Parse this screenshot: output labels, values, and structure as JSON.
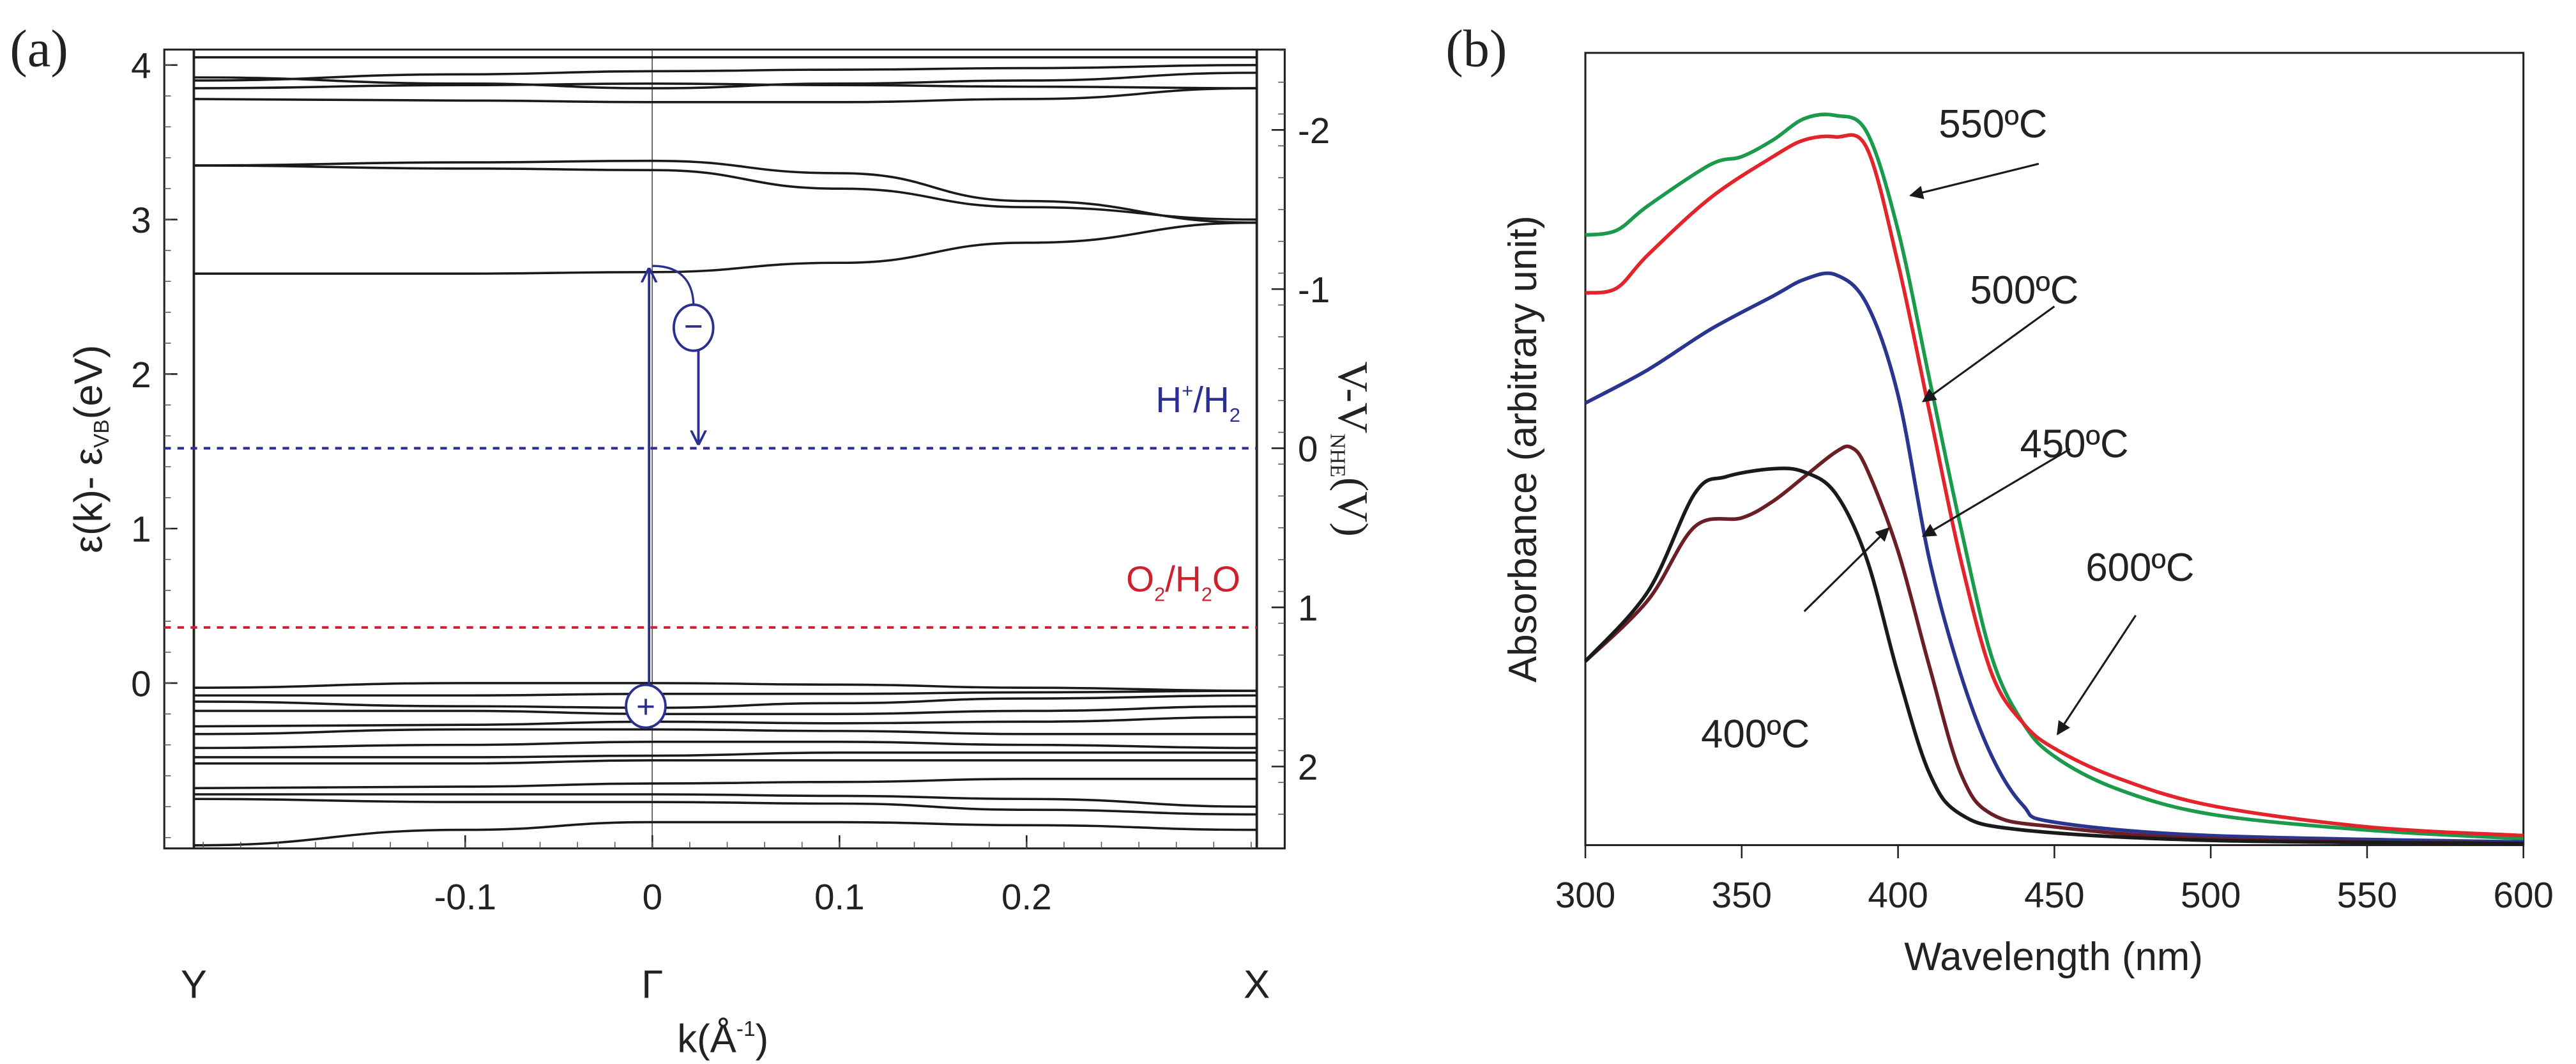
{
  "chart_data": [
    {
      "type": "line",
      "panel_label": "(a)",
      "title": "",
      "xlabel": {
        "main": "k(Å",
        "sup": "-1",
        "end": ")"
      },
      "ylabel": {
        "main": "ε(k)- ε",
        "sub": "VB",
        "end": "(eV)"
      },
      "ylabel_right": {
        "main": "V-V",
        "sub": "NHE",
        "end": "(V)"
      },
      "xlim": [
        -0.245,
        0.323
      ],
      "ylim": [
        -1.07,
        4.1
      ],
      "x_ticks": [
        -0.1,
        0,
        0.1,
        0.2
      ],
      "x_tick_labels": [
        "-0.1",
        "0",
        "0.1",
        "0.2"
      ],
      "y_ticks": [
        0,
        1,
        2,
        3,
        4
      ],
      "y_tick_labels": [
        "0",
        "1",
        "2",
        "3",
        "4"
      ],
      "right_axis": {
        "offset_eV": 1.52,
        "scale": 1.03,
        "ticks": [
          -2,
          -1,
          0,
          1,
          2
        ],
        "tick_labels": [
          "-2",
          "-1",
          "0",
          "1",
          "2"
        ]
      },
      "high_symmetry_points": [
        {
          "label": "Y",
          "k": -0.245
        },
        {
          "label": "Γ",
          "k": 0
        },
        {
          "label": "X",
          "k": 0.323
        }
      ],
      "band_k": [
        -0.245,
        -0.1,
        0,
        0.1,
        0.2,
        0.323
      ],
      "bands": [
        [
          2.65,
          2.65,
          2.66,
          2.72,
          2.85,
          2.98
        ],
        [
          3.35,
          3.33,
          3.32,
          3.2,
          3.08,
          3.0
        ],
        [
          3.35,
          3.37,
          3.38,
          3.3,
          3.12,
          2.98
        ],
        [
          3.78,
          3.77,
          3.76,
          3.76,
          3.78,
          3.85
        ],
        [
          3.85,
          3.87,
          3.88,
          3.87,
          3.86,
          3.85
        ],
        [
          3.92,
          3.88,
          3.85,
          3.88,
          3.9,
          3.95
        ],
        [
          3.9,
          3.94,
          3.96,
          3.97,
          3.98,
          4.0
        ],
        [
          4.05,
          4.05,
          4.05,
          4.05,
          4.05,
          4.05
        ],
        [
          -0.03,
          0.0,
          0.0,
          -0.01,
          -0.03,
          -0.05
        ],
        [
          -0.08,
          -0.08,
          -0.07,
          -0.07,
          -0.06,
          -0.05
        ],
        [
          -0.12,
          -0.15,
          -0.16,
          -0.13,
          -0.1,
          -0.08
        ],
        [
          -0.18,
          -0.18,
          -0.2,
          -0.2,
          -0.18,
          -0.15
        ],
        [
          -0.28,
          -0.27,
          -0.25,
          -0.26,
          -0.25,
          -0.22
        ],
        [
          -0.33,
          -0.3,
          -0.3,
          -0.31,
          -0.33,
          -0.33
        ],
        [
          -0.42,
          -0.4,
          -0.38,
          -0.38,
          -0.4,
          -0.42
        ],
        [
          -0.48,
          -0.48,
          -0.47,
          -0.45,
          -0.45,
          -0.45
        ],
        [
          -0.52,
          -0.52,
          -0.5,
          -0.5,
          -0.5,
          -0.5
        ],
        [
          -0.68,
          -0.67,
          -0.65,
          -0.64,
          -0.62,
          -0.62
        ],
        [
          -0.72,
          -0.72,
          -0.72,
          -0.73,
          -0.75,
          -0.8
        ],
        [
          -0.75,
          -0.77,
          -0.77,
          -0.78,
          -0.82,
          -0.85
        ],
        [
          -1.05,
          -0.95,
          -0.9,
          -0.9,
          -0.92,
          -0.95
        ]
      ],
      "reference_levels": [
        {
          "name": "H+/H2",
          "label": {
            "main": "H",
            "sup": "+",
            "mid": "/H",
            "sub": "2",
            "end": ""
          },
          "energy_eV": 1.52,
          "color": "#2b2f8f"
        },
        {
          "name": "O2/H2O",
          "label": {
            "main": "O",
            "sub": "2",
            "mid": "/H",
            "sub2": "2",
            "end": "O"
          },
          "energy_eV": 0.36,
          "color": "#d0202e"
        }
      ],
      "transition": {
        "k": 0,
        "from_eV": -0.15,
        "to_eV": 2.7,
        "color": "#2b2f8f",
        "hole_symbol": "+",
        "electron_symbol": "−",
        "electron_k": 0.022,
        "electron_eV": 2.3,
        "electron_drop_to_eV": 1.55
      }
    },
    {
      "type": "line",
      "panel_label": "(b)",
      "title": "",
      "xlabel": "Wavelength (nm)",
      "ylabel": "Absorbance (arbitrary unit)",
      "xlim": [
        300,
        600
      ],
      "ylim": [
        0,
        100
      ],
      "x_ticks": [
        300,
        350,
        400,
        450,
        500,
        550,
        600
      ],
      "x_tick_labels": [
        "300",
        "350",
        "400",
        "450",
        "500",
        "550",
        "600"
      ],
      "series": [
        {
          "name": "550ºC",
          "color": "#1a9a4a",
          "x": [
            300,
            310,
            320,
            340,
            350,
            360,
            370,
            380,
            390,
            400,
            410,
            420,
            430,
            440,
            450,
            470,
            500,
            550,
            600
          ],
          "values": [
            77,
            77.6,
            80.7,
            85.9,
            86.9,
            89,
            91.7,
            92.1,
            90,
            77.6,
            58.9,
            40.2,
            23.7,
            15.4,
            11.2,
            7.1,
            3.9,
            1.9,
            0.8
          ]
        },
        {
          "name": "600ºC",
          "color": "#e3242b",
          "x": [
            300,
            310,
            320,
            340,
            360,
            370,
            380,
            390,
            400,
            410,
            420,
            430,
            440,
            450,
            470,
            500,
            550,
            600
          ],
          "values": [
            69.7,
            70.3,
            74.5,
            81.7,
            86.9,
            89,
            89.4,
            88,
            73.4,
            54.8,
            36.1,
            21.6,
            15.4,
            12.2,
            8.5,
            5,
            2.3,
            1.2
          ]
        },
        {
          "name": "500ºC",
          "color": "#2a3590",
          "x": [
            300,
            320,
            340,
            360,
            370,
            380,
            390,
            400,
            410,
            420,
            430,
            440,
            450,
            500,
            600
          ],
          "values": [
            55.8,
            60,
            65.1,
            69.3,
            71.4,
            72,
            68.3,
            56.8,
            36.1,
            21.6,
            11.2,
            5,
            2.9,
            1.2,
            0.4
          ]
        },
        {
          "name": "450ºC",
          "color": "#6b1f24",
          "x": [
            300,
            320,
            335,
            350,
            360,
            370,
            380,
            385,
            390,
            400,
            410,
            420,
            430,
            450,
            500,
            600
          ],
          "values": [
            23.2,
            30.9,
            40.2,
            41.3,
            43.4,
            46.5,
            49.6,
            50.2,
            47.5,
            37.1,
            22.6,
            9.1,
            3.9,
            2.3,
            0.8,
            0.2
          ]
        },
        {
          "name": "400ºC",
          "color": "#1a1a1a",
          "x": [
            300,
            320,
            335,
            345,
            360,
            370,
            380,
            390,
            400,
            410,
            420,
            440,
            500,
            600
          ],
          "values": [
            23.2,
            32,
            44.4,
            46.5,
            47.5,
            47.1,
            44.4,
            36.1,
            21.6,
            9.1,
            3.9,
            1.9,
            0.6,
            0.2
          ]
        }
      ],
      "annotations": [
        {
          "text": "550ºC",
          "text_at": [
            413,
            91
          ],
          "arrow_from": [
            445,
            86
          ],
          "arrow_to": [
            404,
            82
          ]
        },
        {
          "text": "500ºC",
          "text_at": [
            423,
            70
          ],
          "arrow_from": [
            450,
            68
          ],
          "arrow_to": [
            408,
            56
          ]
        },
        {
          "text": "450ºC",
          "text_at": [
            439,
            50.6
          ],
          "arrow_from": [
            455,
            50
          ],
          "arrow_to": [
            408,
            39
          ]
        },
        {
          "text": "600ºC",
          "text_at": [
            460,
            35
          ],
          "arrow_from": [
            476,
            29
          ],
          "arrow_to": [
            451,
            14
          ]
        },
        {
          "text": "400ºC",
          "text_at": [
            337,
            14
          ],
          "arrow_from": [
            370,
            29.5
          ],
          "arrow_to": [
            397,
            40
          ]
        }
      ]
    }
  ]
}
